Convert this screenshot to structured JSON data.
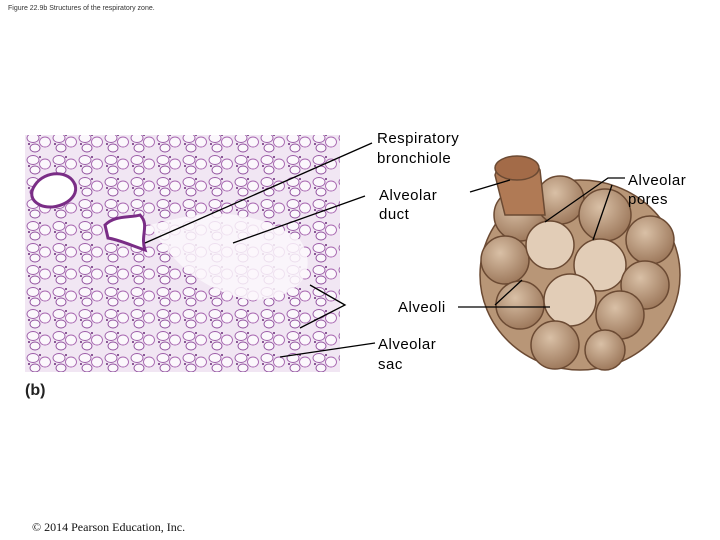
{
  "header": {
    "title": "Figure 22.9b Structures of the respiratory zone."
  },
  "panel_label": "(b)",
  "labels": [
    {
      "lines": [
        "Respiratory",
        "bronchiole"
      ]
    },
    {
      "lines": [
        "Alveolar",
        "duct"
      ]
    },
    {
      "lines": [
        "Alveoli"
      ]
    },
    {
      "lines": [
        "Alveolar",
        "sac"
      ]
    },
    {
      "lines": [
        "Alveolar",
        "pores"
      ]
    }
  ],
  "footer": {
    "copyright": "© 2014 Pearson Education, Inc."
  }
}
